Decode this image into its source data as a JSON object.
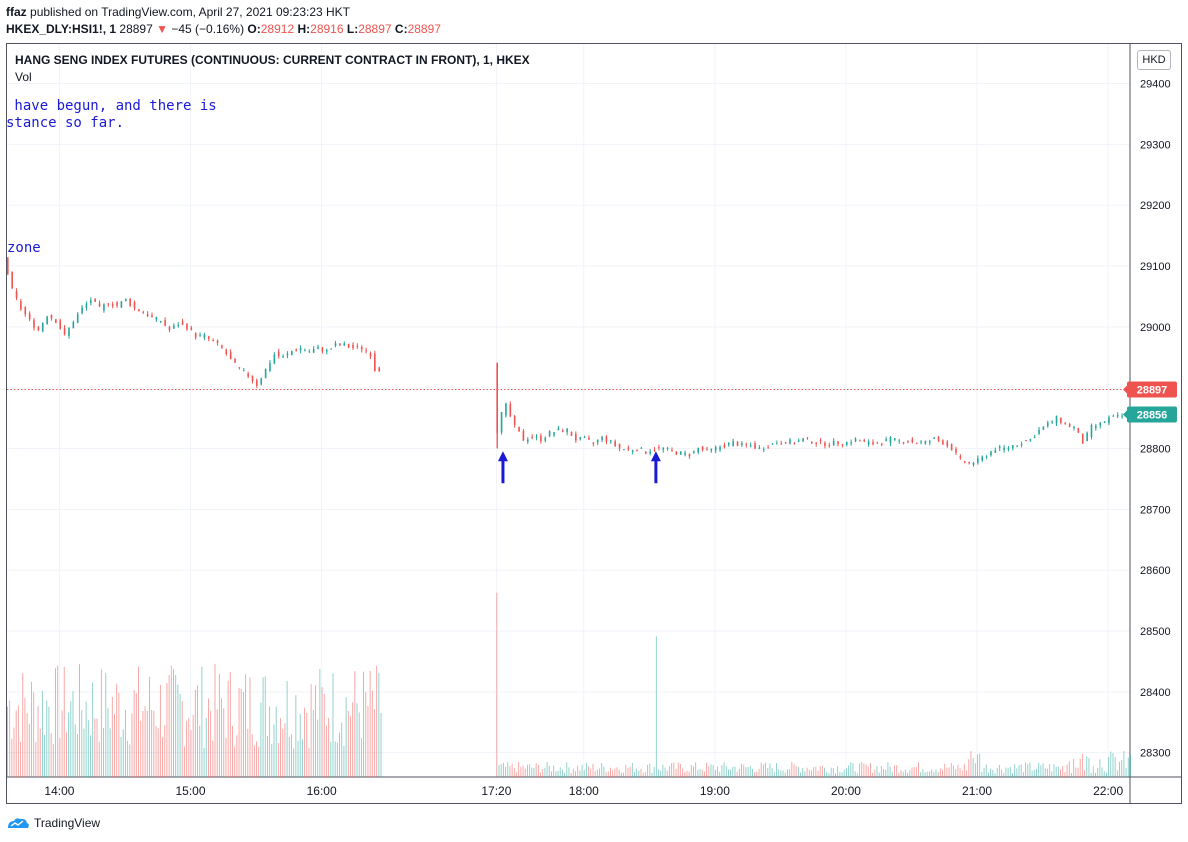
{
  "header": {
    "publisher": "ffaz",
    "published_text": "published on TradingView.com, April 27, 2021 09:23:23 HKT",
    "symbol_line": "HKEX_DLY:HSI1!, 1",
    "last": "28897",
    "arrow": "▼",
    "change": "−45 (−0.16%)",
    "o_label": "O:",
    "o_value": "28912",
    "h_label": "H:",
    "h_value": "28916",
    "l_label": "L:",
    "l_value": "28897",
    "c_label": "C:",
    "c_value": "28897"
  },
  "pane": {
    "title": "HANG SENG INDEX FUTURES (CONTINUOUS: CURRENT CONTRACT IN FRONT), 1, HKEX",
    "vol_label": "Vol",
    "currency": "HKD",
    "note_line1": " have begun, and there is",
    "note_line2": "stance so far.",
    "note_zone": "zone"
  },
  "footer": {
    "brand": "TradingView"
  },
  "colors": {
    "up": "#26a69a",
    "down": "#ef5350",
    "annotation": "#1a1ad6",
    "price_line": "#ef5350"
  },
  "chart_data": {
    "type": "candlestick",
    "y_ticks": [
      "29400",
      "29300",
      "29200",
      "29100",
      "29000",
      "28900",
      "28800",
      "28700",
      "28600",
      "28500",
      "28400",
      "28300"
    ],
    "y_tick_values": [
      29400,
      29300,
      29200,
      29100,
      29000,
      28900,
      28800,
      28700,
      28600,
      28500,
      28400,
      28300
    ],
    "ylim": [
      28260,
      29465
    ],
    "x_ticks": [
      "14:00",
      "15:00",
      "16:00",
      "17:20",
      "18:00",
      "19:00",
      "20:00",
      "21:00",
      "22:00"
    ],
    "x_tick_minutes": [
      840,
      900,
      960,
      1040,
      1080,
      1140,
      1200,
      1260,
      1320
    ],
    "xlim_minutes": [
      816,
      1330
    ],
    "last_price_label": "28897",
    "last_price": 28897,
    "close_label": "28856",
    "close_price": 28856,
    "arrows_minutes": [
      1043,
      1113
    ],
    "grid": true,
    "price_path": [
      [
        816,
        29115
      ],
      [
        820,
        29060
      ],
      [
        824,
        29030
      ],
      [
        828,
        29010
      ],
      [
        832,
        28995
      ],
      [
        836,
        29020
      ],
      [
        840,
        29010
      ],
      [
        844,
        28985
      ],
      [
        848,
        29010
      ],
      [
        852,
        29030
      ],
      [
        856,
        29045
      ],
      [
        860,
        29030
      ],
      [
        864,
        29040
      ],
      [
        868,
        29035
      ],
      [
        872,
        29045
      ],
      [
        876,
        29030
      ],
      [
        880,
        29025
      ],
      [
        884,
        29015
      ],
      [
        888,
        29010
      ],
      [
        892,
        28995
      ],
      [
        896,
        29005
      ],
      [
        900,
        29000
      ],
      [
        904,
        28985
      ],
      [
        908,
        28985
      ],
      [
        912,
        28975
      ],
      [
        916,
        28965
      ],
      [
        920,
        28945
      ],
      [
        924,
        28930
      ],
      [
        928,
        28920
      ],
      [
        932,
        28905
      ],
      [
        936,
        28930
      ],
      [
        940,
        28955
      ],
      [
        944,
        28950
      ],
      [
        948,
        28960
      ],
      [
        952,
        28965
      ],
      [
        956,
        28960
      ],
      [
        960,
        28965
      ],
      [
        964,
        28960
      ],
      [
        968,
        28970
      ],
      [
        972,
        28970
      ],
      [
        976,
        28965
      ],
      [
        980,
        28965
      ],
      [
        984,
        28955
      ],
      [
        986,
        28930
      ],
      [
        1040,
        28940
      ],
      [
        1041,
        28810
      ],
      [
        1043,
        28850
      ],
      [
        1046,
        28870
      ],
      [
        1050,
        28835
      ],
      [
        1054,
        28815
      ],
      [
        1058,
        28820
      ],
      [
        1062,
        28815
      ],
      [
        1066,
        28825
      ],
      [
        1070,
        28830
      ],
      [
        1074,
        28830
      ],
      [
        1078,
        28815
      ],
      [
        1082,
        28815
      ],
      [
        1086,
        28808
      ],
      [
        1090,
        28818
      ],
      [
        1094,
        28810
      ],
      [
        1098,
        28800
      ],
      [
        1102,
        28798
      ],
      [
        1106,
        28800
      ],
      [
        1110,
        28795
      ],
      [
        1114,
        28800
      ],
      [
        1118,
        28800
      ],
      [
        1122,
        28795
      ],
      [
        1126,
        28792
      ],
      [
        1130,
        28790
      ],
      [
        1134,
        28800
      ],
      [
        1138,
        28795
      ],
      [
        1142,
        28800
      ],
      [
        1146,
        28805
      ],
      [
        1150,
        28810
      ],
      [
        1154,
        28805
      ],
      [
        1158,
        28805
      ],
      [
        1162,
        28800
      ],
      [
        1166,
        28805
      ],
      [
        1170,
        28810
      ],
      [
        1174,
        28812
      ],
      [
        1178,
        28810
      ],
      [
        1182,
        28815
      ],
      [
        1186,
        28812
      ],
      [
        1190,
        28808
      ],
      [
        1194,
        28808
      ],
      [
        1198,
        28810
      ],
      [
        1202,
        28810
      ],
      [
        1206,
        28815
      ],
      [
        1210,
        28810
      ],
      [
        1214,
        28808
      ],
      [
        1218,
        28810
      ],
      [
        1222,
        28815
      ],
      [
        1226,
        28812
      ],
      [
        1230,
        28812
      ],
      [
        1234,
        28810
      ],
      [
        1238,
        28810
      ],
      [
        1242,
        28815
      ],
      [
        1246,
        28810
      ],
      [
        1250,
        28800
      ],
      [
        1254,
        28780
      ],
      [
        1258,
        28775
      ],
      [
        1262,
        28780
      ],
      [
        1266,
        28790
      ],
      [
        1270,
        28800
      ],
      [
        1274,
        28800
      ],
      [
        1278,
        28805
      ],
      [
        1282,
        28810
      ],
      [
        1286,
        28815
      ],
      [
        1290,
        28830
      ],
      [
        1294,
        28840
      ],
      [
        1298,
        28850
      ],
      [
        1302,
        28840
      ],
      [
        1306,
        28835
      ],
      [
        1310,
        28810
      ],
      [
        1314,
        28835
      ],
      [
        1318,
        28840
      ],
      [
        1322,
        28850
      ],
      [
        1326,
        28852
      ],
      [
        1330,
        28856
      ]
    ],
    "volume_highlights_minutes": [
      1040,
      1113
    ],
    "volume_highlight_values": [
      0.97,
      0.74
    ]
  }
}
